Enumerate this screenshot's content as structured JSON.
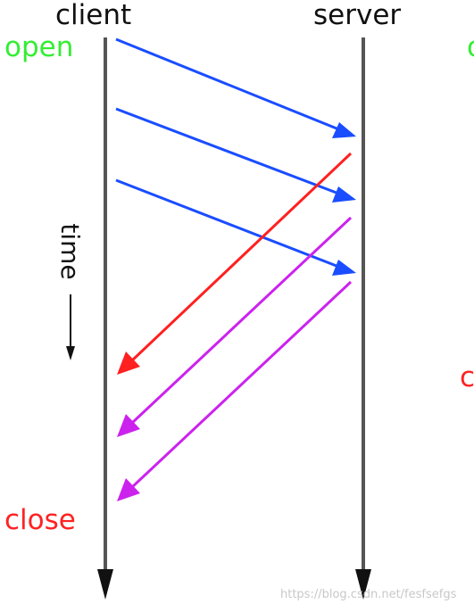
{
  "labels": {
    "client": "client",
    "server": "server",
    "open": "open",
    "close": "close",
    "time": "time",
    "edge_open_fragment": "o",
    "edge_close_fragment": "c"
  },
  "watermark": "https://blog.csdn.net/fesfsefgs",
  "colors": {
    "timeline": "#555555",
    "request": "#1a4dff",
    "response_first": "#ff2020",
    "response": "#cc22ee",
    "open_text": "#33ee33",
    "close_text": "#ff2222",
    "text": "#111111"
  },
  "messages": [
    {
      "kind": "request",
      "from": "client",
      "to": "server",
      "color": "#1a4dff"
    },
    {
      "kind": "request",
      "from": "client",
      "to": "server",
      "color": "#1a4dff"
    },
    {
      "kind": "request",
      "from": "client",
      "to": "server",
      "color": "#1a4dff"
    },
    {
      "kind": "response",
      "from": "server",
      "to": "client",
      "color": "#ff2020"
    },
    {
      "kind": "response",
      "from": "server",
      "to": "client",
      "color": "#cc22ee"
    },
    {
      "kind": "response",
      "from": "server",
      "to": "client",
      "color": "#cc22ee"
    }
  ]
}
